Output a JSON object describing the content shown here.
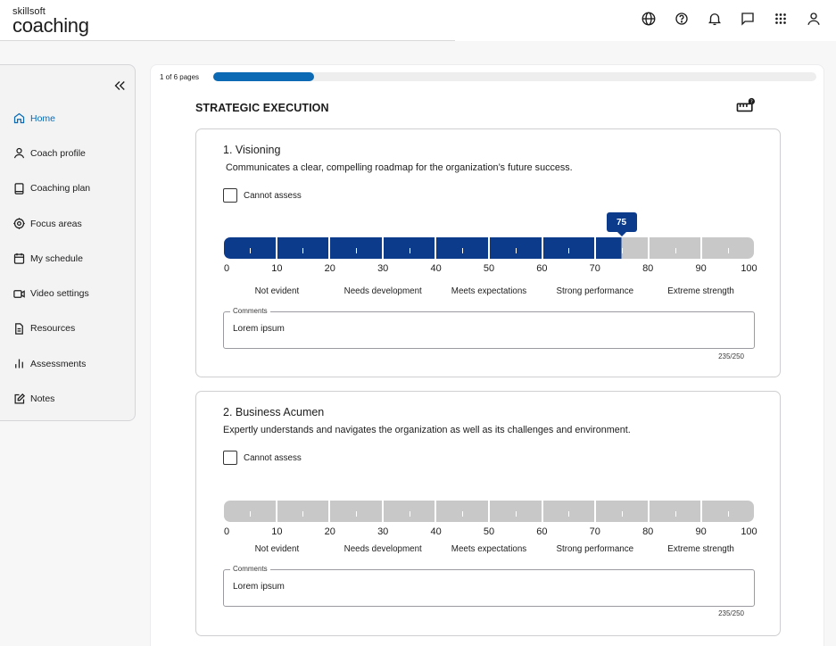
{
  "app": {
    "logo_small": "skillsoft",
    "logo_big": "coaching"
  },
  "header": {
    "icons": [
      "globe-icon",
      "help-icon",
      "bell-icon",
      "chat-icon",
      "apps-grid-icon",
      "user-icon"
    ]
  },
  "sidebar": {
    "collapse_icon": "double-chevron-left-icon",
    "items": [
      {
        "label": "Home",
        "icon": "home-icon",
        "active": true
      },
      {
        "label": "Coach profile",
        "icon": "person-icon",
        "active": false
      },
      {
        "label": "Coaching plan",
        "icon": "book-icon",
        "active": false
      },
      {
        "label": "Focus areas",
        "icon": "target-icon",
        "active": false
      },
      {
        "label": "My schedule",
        "icon": "calendar-icon",
        "active": false
      },
      {
        "label": "Video settings",
        "icon": "video-icon",
        "active": false
      },
      {
        "label": "Resources",
        "icon": "document-icon",
        "active": false
      },
      {
        "label": "Assessments",
        "icon": "bar-chart-icon",
        "active": false
      },
      {
        "label": "Notes",
        "icon": "edit-note-icon",
        "active": false
      }
    ]
  },
  "progress": {
    "label": "1 of 6 pages",
    "current": 1,
    "total": 6
  },
  "section": {
    "title": "STRATEGIC EXECUTION",
    "icon": "ruler-help-icon"
  },
  "scale": {
    "ticks": [
      "0",
      "10",
      "20",
      "30",
      "40",
      "50",
      "60",
      "70",
      "80",
      "90",
      "100"
    ],
    "bands": [
      "Not evident",
      "Needs development",
      "Meets expectations",
      "Strong performance",
      "Extreme strength"
    ],
    "active_color": "#0d3b8c",
    "inactive_color": "#c8c8c8"
  },
  "questions": [
    {
      "title": "1. Visioning",
      "description": "Communicates a clear, compelling roadmap for the organization’s future success.",
      "cannot_assess_label": "Cannot assess",
      "value": 75,
      "value_label": "75",
      "comments_label": "Comments",
      "comments_value": "Lorem ipsum",
      "counter": "235/250"
    },
    {
      "title": "2. Business Acumen",
      "description": "Expertly understands and navigates the organization as well as its challenges and environment.",
      "cannot_assess_label": "Cannot assess",
      "value": null,
      "value_label": "",
      "comments_label": "Comments",
      "comments_value": "Lorem ipsum",
      "counter": "235/250"
    }
  ]
}
